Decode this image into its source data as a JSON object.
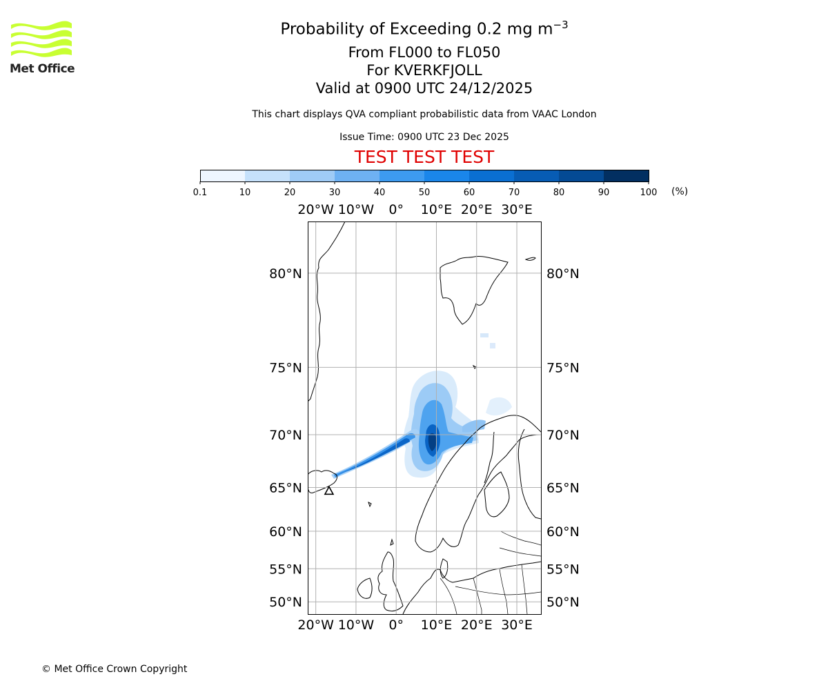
{
  "logo": {
    "name": "Met Office",
    "color": "#c8ff32"
  },
  "title": {
    "line1_prefix": "Probability of Exceeding 0.2 mg m",
    "line1_exponent": "−3",
    "line2": "From FL000 to FL050",
    "line3": "For KVERKFJOLL",
    "line4": "Valid at 0900 UTC 24/12/2025"
  },
  "subtitle": "This chart displays QVA compliant probabilistic data from VAAC London",
  "issue_time": "Issue Time: 0900 UTC 23 Dec 2025",
  "test_banner": "TEST TEST TEST",
  "colorbar": {
    "ticks": [
      "0.1",
      "10",
      "20",
      "30",
      "40",
      "50",
      "60",
      "70",
      "80",
      "90",
      "100"
    ],
    "colors": [
      "#eef6ff",
      "#c6e1fb",
      "#9fcbf6",
      "#6eb1f3",
      "#3d9bf0",
      "#1a86ea",
      "#0a6fd2",
      "#075cb4",
      "#044a94",
      "#022f61"
    ],
    "units": "(%)"
  },
  "map": {
    "lon_range": [
      -22,
      36
    ],
    "lat_range": [
      48,
      82
    ],
    "lon_ticks": [
      -20,
      -10,
      0,
      10,
      20,
      30
    ],
    "lon_labels": [
      "20°W",
      "10°W",
      "0°",
      "10°E",
      "20°E",
      "30°E"
    ],
    "lat_ticks": [
      50,
      55,
      60,
      65,
      70,
      75,
      80
    ],
    "lat_labels": [
      "50°N",
      "55°N",
      "60°N",
      "65°N",
      "70°N",
      "75°N",
      "80°N"
    ],
    "volcano": {
      "name": "KVERKFJOLL",
      "lon": -16.7,
      "lat": 64.65
    }
  },
  "copyright": "© Met Office Crown Copyright"
}
